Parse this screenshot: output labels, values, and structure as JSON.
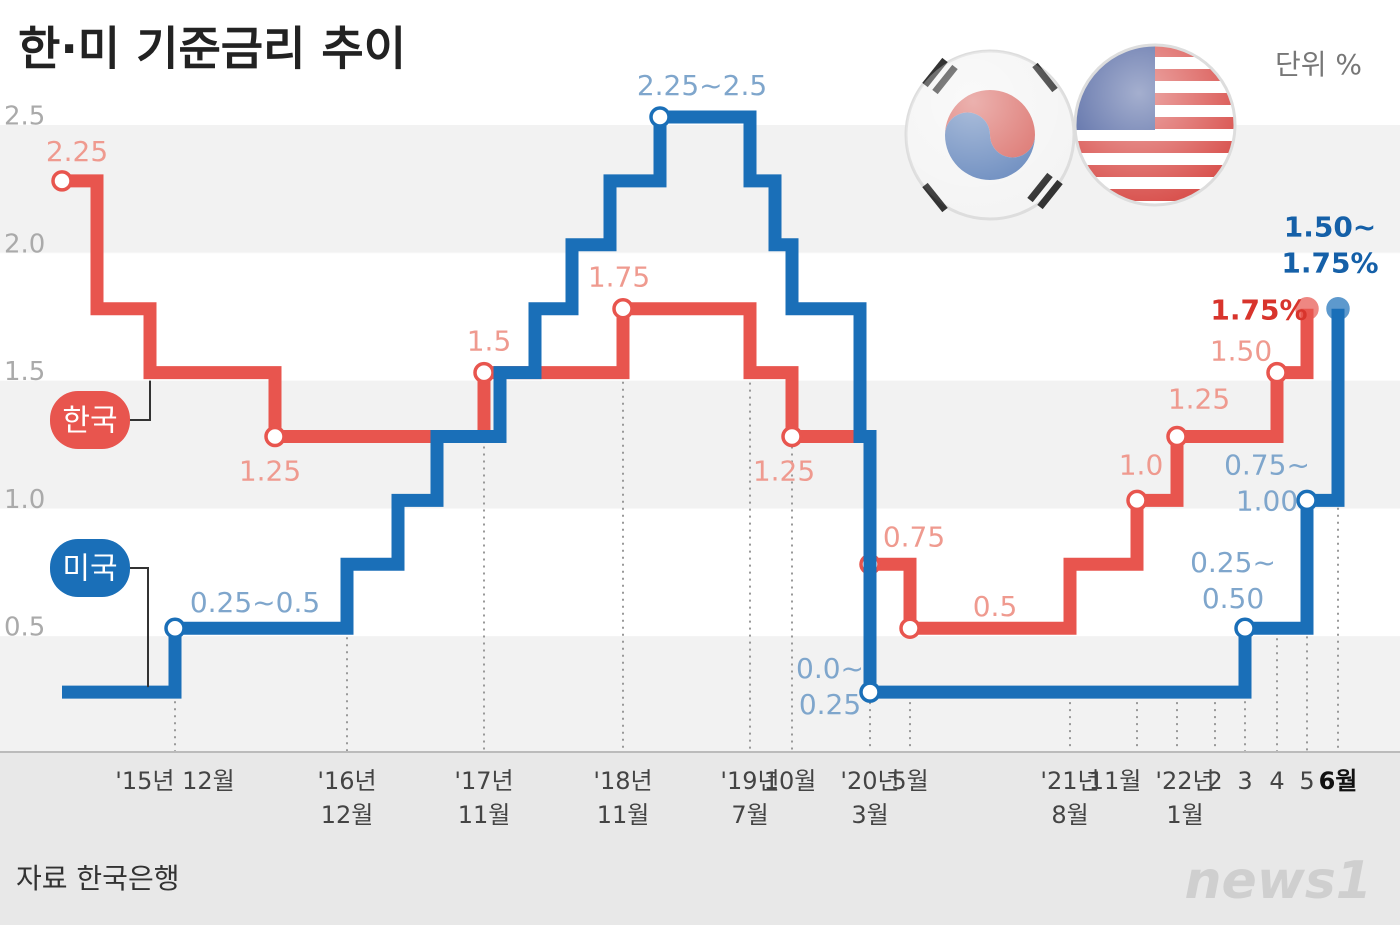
{
  "chart_data": {
    "type": "step",
    "title": "한·미 기준금리 추이",
    "unit_label": "단위 %",
    "source": "자료 한국은행",
    "logo": "news1",
    "ylim": [
      0,
      2.5
    ],
    "yticks": [
      2.5,
      {
        "value": 2,
        "label": "2.0"
      },
      1.5,
      {
        "value": 1,
        "label": "1.0"
      },
      0.5
    ],
    "categories": [
      null,
      null,
      null,
      "'15년 12월",
      null,
      "'16년\n12월",
      null,
      null,
      "'17년\n11월",
      null,
      null,
      null,
      null,
      "'18년\n11월",
      null,
      "'19년\n7월",
      null,
      "10월",
      null,
      "'20년\n3월",
      "5월",
      "'21년\n8월",
      "11월",
      "'22년\n1월",
      "2",
      "3",
      "4",
      "5",
      "6월"
    ],
    "series": [
      {
        "name": "한국",
        "color": "#e8554e",
        "values": [
          2.25,
          1.75,
          1.5,
          1.5,
          1.25,
          1.25,
          1.25,
          1.25,
          1.5,
          1.5,
          1.5,
          1.5,
          1.5,
          1.75,
          1.75,
          1.5,
          1.5,
          1.25,
          1.25,
          0.75,
          0.5,
          0.75,
          1,
          1.25,
          1.25,
          1.25,
          1.5,
          1.75,
          null
        ],
        "value_labels": [
          "2.25",
          null,
          null,
          null,
          "1.25",
          null,
          null,
          null,
          "1.5",
          null,
          null,
          null,
          null,
          "1.75",
          null,
          null,
          null,
          "1.25",
          null,
          "0.75",
          "0.5",
          null,
          "1.0",
          "1.25",
          null,
          null,
          "1.50",
          "1.75%",
          null
        ]
      },
      {
        "name": "미국",
        "color": "#1a6fb8",
        "values": [
          0.25,
          0.25,
          0.25,
          0.5,
          0.5,
          0.75,
          1,
          1.25,
          1.25,
          1.5,
          1.75,
          2,
          2.25,
          2.25,
          2.5,
          2.25,
          2,
          1.75,
          1.25,
          0.25,
          0.25,
          0.25,
          0.25,
          0.25,
          0.25,
          0.5,
          0.5,
          1,
          1.75
        ],
        "value_labels": [
          null,
          null,
          null,
          "0.25~0.5",
          null,
          null,
          null,
          null,
          null,
          null,
          null,
          null,
          null,
          null,
          "2.25~2.5",
          null,
          null,
          null,
          null,
          "0.0~\n0.25",
          null,
          null,
          null,
          null,
          null,
          "0.25~\n0.50",
          null,
          "0.75~\n1.00",
          "1.50~\n1.75%"
        ]
      }
    ]
  }
}
